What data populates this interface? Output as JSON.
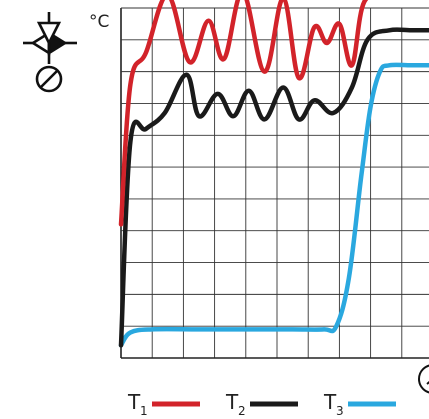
{
  "chart_data": {
    "type": "line",
    "title": "",
    "xlabel": "",
    "ylabel": "°C",
    "grid": true,
    "legend_placement": "bottom",
    "xlim": [
      0,
      10
    ],
    "ylim": [
      0,
      11
    ],
    "series": [
      {
        "name": "T",
        "sub": "1",
        "color": "#d2232a",
        "x": [
          0,
          0.3,
          0.8,
          1.5,
          2.2,
          2.8,
          3.3,
          3.9,
          4.6,
          5.2,
          5.7,
          6.2,
          6.6,
          7.0,
          7.4,
          7.8,
          8.6,
          9.3,
          10
        ],
        "y": [
          4.2,
          8.6,
          9.6,
          11.4,
          9.3,
          10.6,
          9.4,
          11.5,
          9.0,
          11.3,
          8.8,
          10.4,
          9.9,
          10.5,
          9.2,
          11.2,
          11.4,
          11.4,
          11.4
        ]
      },
      {
        "name": "T",
        "sub": "2",
        "color": "#1a1a1a",
        "x": [
          0,
          0.3,
          0.8,
          1.4,
          2.1,
          2.5,
          3.1,
          3.6,
          4.1,
          4.6,
          5.2,
          5.7,
          6.2,
          6.8,
          7.4,
          7.9,
          8.6,
          9.3,
          10
        ],
        "y": [
          0.4,
          6.8,
          7.2,
          7.7,
          8.9,
          7.6,
          8.3,
          7.6,
          8.4,
          7.5,
          8.5,
          7.5,
          8.1,
          7.7,
          8.5,
          10.0,
          10.3,
          10.3,
          10.3
        ]
      },
      {
        "name": "T",
        "sub": "3",
        "color": "#2aa8df",
        "x": [
          0,
          0.3,
          1.0,
          2.5,
          4.0,
          5.5,
          6.5,
          6.9,
          7.3,
          7.7,
          8.0,
          8.3,
          8.6,
          9.3,
          10
        ],
        "y": [
          0.4,
          0.8,
          0.9,
          0.9,
          0.9,
          0.9,
          0.9,
          1.0,
          2.5,
          5.7,
          7.9,
          9.0,
          9.2,
          9.2,
          9.2
        ]
      }
    ]
  },
  "icons": {
    "valve": "three-way-valve-icon",
    "clock": "clock-icon"
  }
}
